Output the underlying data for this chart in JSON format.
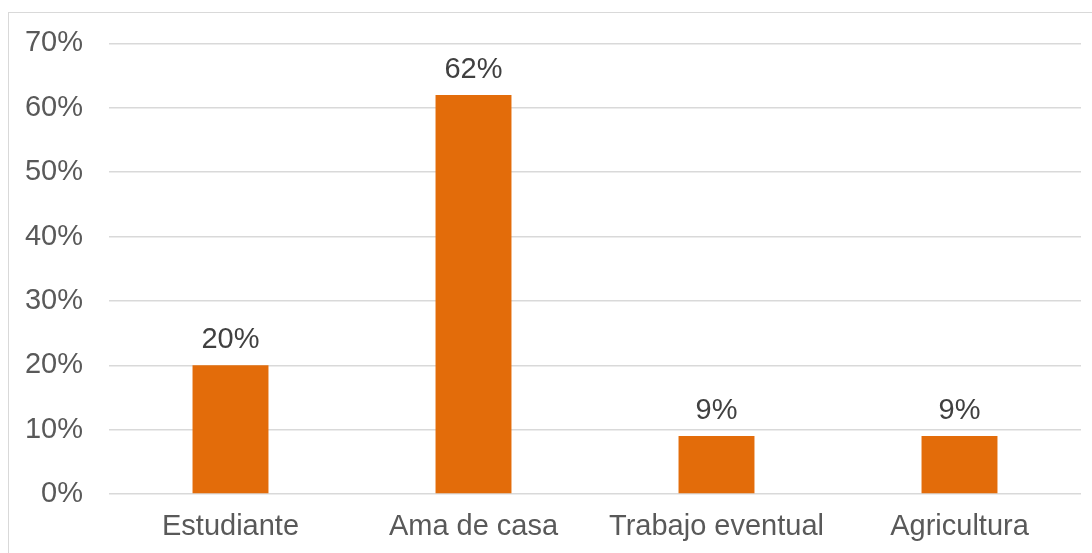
{
  "chart_data": {
    "type": "bar",
    "categories": [
      "Estudiante",
      "Ama de casa",
      "Trabajo eventual",
      "Agricultura"
    ],
    "values": [
      20,
      62,
      9,
      9
    ],
    "value_labels": [
      "20%",
      "62%",
      "9%",
      "9%"
    ],
    "color": "#e36c0a",
    "ylim": [
      0,
      70
    ],
    "yticks": [
      {
        "value": 0,
        "label": "0%"
      },
      {
        "value": 10,
        "label": "10%"
      },
      {
        "value": 20,
        "label": "20%"
      },
      {
        "value": 30,
        "label": "30%"
      },
      {
        "value": 40,
        "label": "40%"
      },
      {
        "value": 50,
        "label": "50%"
      },
      {
        "value": 60,
        "label": "60%"
      },
      {
        "value": 70,
        "label": "70%"
      }
    ],
    "grid": "y"
  }
}
